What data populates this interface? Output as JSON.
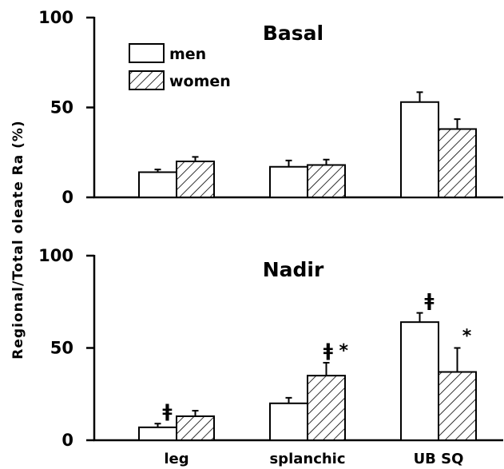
{
  "figure": {
    "ylabel": "Regional/Total oleate Ra (%)"
  },
  "chart_data": [
    {
      "type": "bar",
      "title": "Basal",
      "ylim": [
        0,
        100
      ],
      "yticks": [
        0,
        50,
        100
      ],
      "categories": [
        "leg",
        "splanchic",
        "UB SQ"
      ],
      "show_category_labels": false,
      "legend": {
        "placement": "top-left"
      },
      "series": [
        {
          "name": "men",
          "pattern": "open",
          "values": [
            14,
            17,
            53
          ],
          "errors": [
            1.5,
            3.5,
            5.5
          ],
          "annotations": [
            "",
            "",
            ""
          ]
        },
        {
          "name": "women",
          "pattern": "hatched",
          "values": [
            20,
            18,
            38
          ],
          "errors": [
            2.5,
            3,
            5.5
          ],
          "annotations": [
            "",
            "",
            ""
          ]
        }
      ]
    },
    {
      "type": "bar",
      "title": "Nadir",
      "ylim": [
        0,
        100
      ],
      "yticks": [
        0,
        50,
        100
      ],
      "categories": [
        "leg",
        "splanchic",
        "UB SQ"
      ],
      "show_category_labels": true,
      "series": [
        {
          "name": "men",
          "pattern": "open",
          "values": [
            7,
            20,
            64
          ],
          "errors": [
            2,
            3,
            5
          ],
          "annotations": [
            "ǂ",
            "",
            "ǂ"
          ]
        },
        {
          "name": "women",
          "pattern": "hatched",
          "values": [
            13,
            35,
            37
          ],
          "errors": [
            3,
            7,
            13
          ],
          "annotations": [
            "",
            "ǂ *",
            "*"
          ]
        }
      ]
    }
  ],
  "colors": {
    "ink": "#000000",
    "background": "#ffffff"
  }
}
